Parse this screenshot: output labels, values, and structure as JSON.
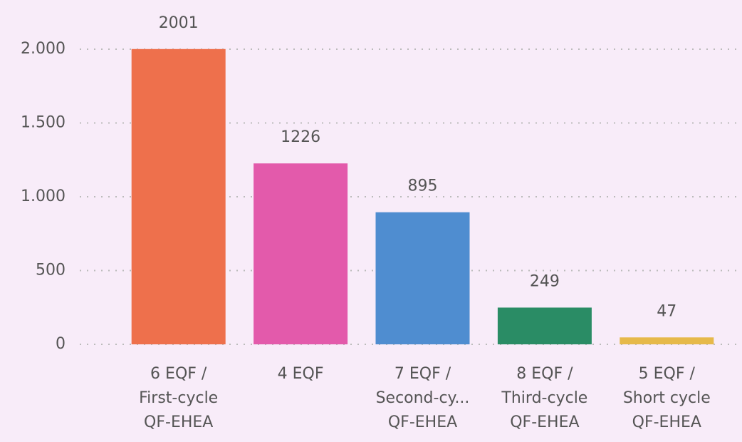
{
  "chart_data": {
    "type": "bar",
    "categories": [
      "6 EQF /\nFirst-cycle\nQF-EHEA",
      "4 EQF",
      "7 EQF /\nSecond-cy...\nQF-EHEA",
      "8 EQF /\nThird-cycle\nQF-EHEA",
      "5 EQF /\nShort cycle\nQF-EHEA"
    ],
    "values": [
      2001,
      1226,
      895,
      249,
      47
    ],
    "colors": [
      "#ee704c",
      "#e35aab",
      "#4f8dd0",
      "#2a8c65",
      "#e6b94a"
    ],
    "ylim": [
      0,
      2000
    ],
    "yticks": [
      0,
      500,
      {
        "value": 1000,
        "label": "1.000"
      },
      {
        "value": 1500,
        "label": "1.500"
      },
      {
        "value": 2000,
        "label": "2.000"
      }
    ],
    "grid": true
  }
}
